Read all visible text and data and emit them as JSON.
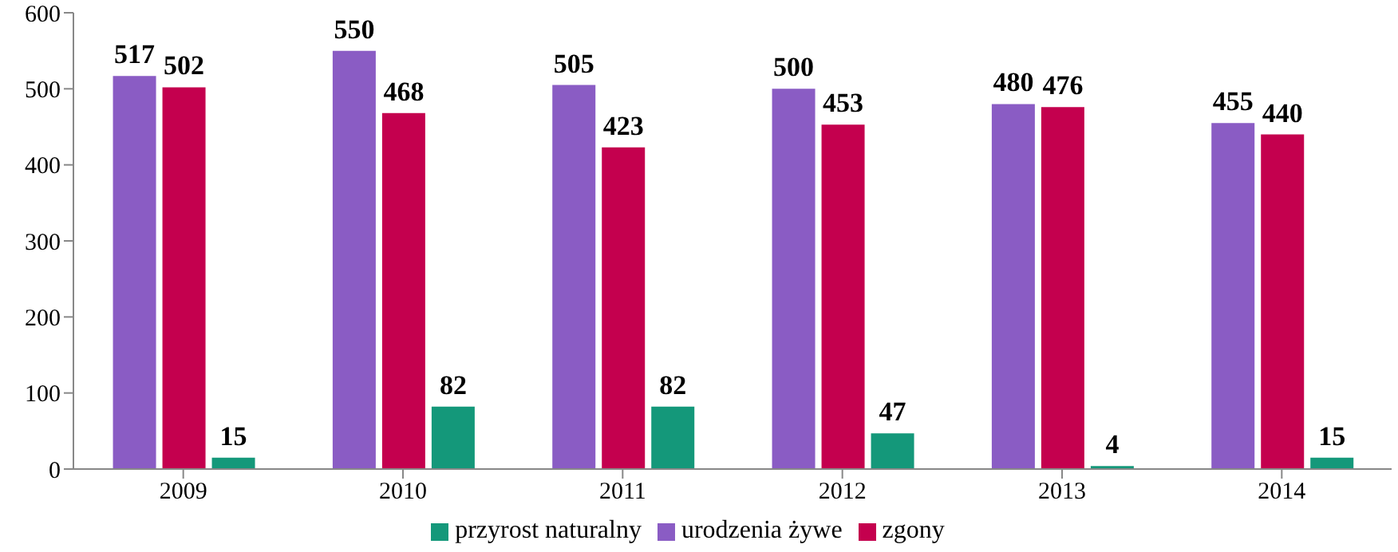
{
  "chart_data": {
    "type": "bar",
    "categories": [
      "2009",
      "2010",
      "2011",
      "2012",
      "2013",
      "2014"
    ],
    "series": [
      {
        "name": "urodzenia żywe",
        "color": "#8a5cc4",
        "values": [
          517,
          550,
          505,
          500,
          480,
          455
        ]
      },
      {
        "name": "zgony",
        "color": "#c4004e",
        "values": [
          502,
          468,
          423,
          453,
          476,
          440
        ]
      },
      {
        "name": "przyrost naturalny",
        "color": "#14987a",
        "values": [
          15,
          82,
          82,
          47,
          4,
          15
        ]
      }
    ],
    "ylim": [
      0,
      600
    ],
    "yticks": [
      0,
      100,
      200,
      300,
      400,
      500,
      600
    ],
    "grid": false,
    "legend": "bottom",
    "data_labels": true
  }
}
